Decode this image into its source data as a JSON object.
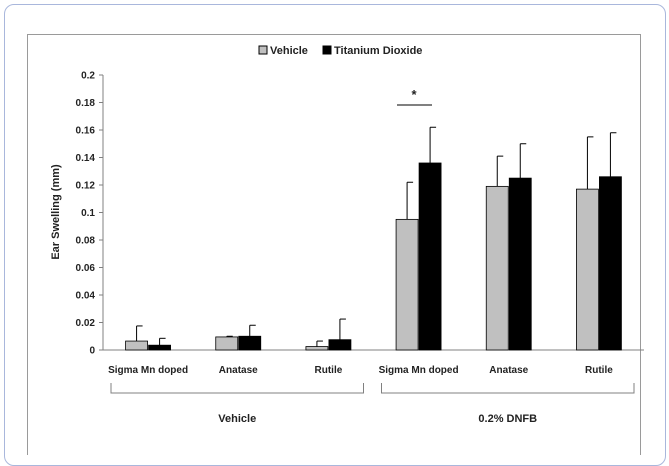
{
  "chart_data": {
    "type": "bar",
    "title": "",
    "xlabel": "",
    "ylabel": "Ear Swelling (mm)",
    "ylim": [
      0,
      0.2
    ],
    "yticks": [
      "0",
      "0.02",
      "0.04",
      "0.06",
      "0.08",
      "0.1",
      "0.12",
      "0.14",
      "0.16",
      "0.18",
      "0.2"
    ],
    "grid": false,
    "legend_position": "top",
    "categories": [
      "Sigma Mn doped",
      "Anatase",
      "Rutile",
      "Sigma Mn doped",
      "Anatase",
      "Rutile"
    ],
    "groups": [
      {
        "label": "Vehicle",
        "categories": [
          0,
          1,
          2
        ]
      },
      {
        "label": "0.2% DNFB",
        "categories": [
          3,
          4,
          5
        ]
      }
    ],
    "series": [
      {
        "name": "Vehicle",
        "color": "#c0c0c0",
        "values": [
          0.0065,
          0.0095,
          0.0025,
          0.095,
          0.119,
          0.117
        ],
        "errors": [
          0.011,
          0.0005,
          0.004,
          0.027,
          0.022,
          0.038
        ]
      },
      {
        "name": "Titanium Dioxide",
        "color": "#000000",
        "values": [
          0.0035,
          0.01,
          0.0075,
          0.136,
          0.125,
          0.126
        ],
        "errors": [
          0.005,
          0.008,
          0.015,
          0.026,
          0.025,
          0.032
        ]
      }
    ],
    "annotations": [
      {
        "text": "*",
        "between_category": 3
      }
    ]
  }
}
